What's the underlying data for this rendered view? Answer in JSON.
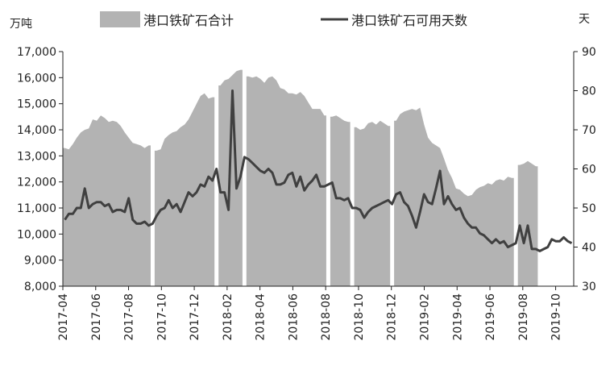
{
  "chart_data": {
    "type": "area+line",
    "left_unit": "万吨",
    "right_unit": "天",
    "left_ylim": [
      8000,
      17000
    ],
    "left_ticks": [
      "8,000",
      "9,000",
      "10,000",
      "11,000",
      "12,000",
      "13,000",
      "14,000",
      "15,000",
      "16,000",
      "17,000"
    ],
    "left_tick_values": [
      8000,
      9000,
      10000,
      11000,
      12000,
      13000,
      14000,
      15000,
      16000,
      17000
    ],
    "right_ylim": [
      30,
      90
    ],
    "right_ticks": [
      "30",
      "40",
      "50",
      "60",
      "70",
      "80",
      "90"
    ],
    "right_tick_values": [
      30,
      40,
      50,
      60,
      70,
      80,
      90
    ],
    "x_start": "2017-04",
    "x_end": "2019-11",
    "x_ticks": [
      "2017-04",
      "2017-06",
      "2017-08",
      "2017-10",
      "2017-12",
      "2018-02",
      "2018-04",
      "2018-06",
      "2018-08",
      "2018-10",
      "2018-12",
      "2019-02",
      "2019-04",
      "2019-06",
      "2019-08",
      "2019-10"
    ],
    "grid": false,
    "legend_position": "top",
    "colors": {
      "area": "#b3b3b3",
      "line": "#404040"
    },
    "series": [
      {
        "name": "港口铁矿石合计",
        "kind": "area",
        "axis": "left",
        "segments": [
          [
            [
              0,
              13300
            ],
            [
              1,
              13250
            ],
            [
              2,
              13450
            ],
            [
              3,
              13700
            ],
            [
              4,
              13900
            ],
            [
              5,
              14000
            ],
            [
              6,
              14050
            ],
            [
              7,
              14400
            ],
            [
              8,
              14350
            ],
            [
              9,
              14550
            ],
            [
              10,
              14450
            ],
            [
              11,
              14300
            ],
            [
              12,
              14350
            ],
            [
              13,
              14300
            ],
            [
              14,
              14150
            ],
            [
              15,
              13900
            ],
            [
              16,
              13700
            ],
            [
              17,
              13500
            ],
            [
              18,
              13450
            ],
            [
              19,
              13400
            ],
            [
              20,
              13300
            ],
            [
              21,
              13400
            ]
          ],
          [
            [
              23,
              13200
            ],
            [
              24,
              13250
            ],
            [
              25,
              13650
            ],
            [
              26,
              13800
            ],
            [
              27,
              13900
            ],
            [
              28,
              13950
            ],
            [
              29,
              14100
            ],
            [
              30,
              14200
            ],
            [
              31,
              14400
            ],
            [
              32,
              14700
            ],
            [
              33,
              15000
            ],
            [
              34,
              15300
            ],
            [
              35,
              15400
            ],
            [
              36,
              15200
            ],
            [
              37,
              15250
            ]
          ],
          [
            [
              39,
              15700
            ],
            [
              40,
              15900
            ],
            [
              41,
              15950
            ],
            [
              42,
              16100
            ],
            [
              43,
              16250
            ],
            [
              44,
              16300
            ]
          ],
          [
            [
              46,
              16050
            ],
            [
              47,
              16000
            ],
            [
              48,
              16050
            ],
            [
              49,
              15950
            ],
            [
              50,
              15800
            ],
            [
              51,
              16000
            ],
            [
              52,
              16050
            ],
            [
              53,
              15900
            ],
            [
              54,
              15600
            ],
            [
              55,
              15550
            ],
            [
              56,
              15400
            ],
            [
              57,
              15400
            ],
            [
              58,
              15350
            ],
            [
              59,
              15450
            ],
            [
              60,
              15300
            ],
            [
              61,
              15050
            ],
            [
              62,
              14800
            ],
            [
              63,
              14800
            ],
            [
              64,
              14800
            ],
            [
              65,
              14550
            ]
          ],
          [
            [
              67,
              14500
            ],
            [
              68,
              14550
            ],
            [
              69,
              14450
            ],
            [
              70,
              14350
            ],
            [
              71,
              14300
            ]
          ],
          [
            [
              73,
              14100
            ],
            [
              74,
              14000
            ],
            [
              75,
              14050
            ],
            [
              76,
              14250
            ],
            [
              77,
              14300
            ],
            [
              78,
              14200
            ],
            [
              79,
              14350
            ],
            [
              80,
              14250
            ],
            [
              81,
              14150
            ]
          ],
          [
            [
              83,
              14350
            ],
            [
              84,
              14600
            ],
            [
              85,
              14700
            ],
            [
              86,
              14750
            ],
            [
              87,
              14800
            ],
            [
              88,
              14750
            ],
            [
              89,
              14850
            ],
            [
              90,
              14200
            ],
            [
              91,
              13700
            ],
            [
              92,
              13500
            ],
            [
              93,
              13400
            ],
            [
              94,
              13300
            ],
            [
              95,
              12900
            ],
            [
              96,
              12450
            ],
            [
              97,
              12150
            ],
            [
              98,
              11750
            ],
            [
              99,
              11700
            ],
            [
              100,
              11550
            ],
            [
              101,
              11450
            ],
            [
              102,
              11500
            ],
            [
              103,
              11700
            ],
            [
              104,
              11800
            ],
            [
              105,
              11850
            ],
            [
              106,
              11950
            ],
            [
              107,
              11900
            ],
            [
              108,
              12050
            ],
            [
              109,
              12100
            ],
            [
              110,
              12050
            ],
            [
              111,
              12200
            ],
            [
              112,
              12150
            ]
          ],
          [
            [
              114,
              12650
            ],
            [
              115,
              12700
            ],
            [
              116,
              12800
            ],
            [
              117,
              12700
            ],
            [
              118,
              12600
            ]
          ]
        ]
      },
      {
        "name": "港口铁矿石可用天数",
        "kind": "line",
        "axis": "right",
        "points": [
          [
            0,
            47
          ],
          [
            1,
            48.5
          ],
          [
            2,
            48.5
          ],
          [
            3,
            50
          ],
          [
            4,
            50
          ],
          [
            5,
            55
          ],
          [
            6,
            50
          ],
          [
            7,
            51
          ],
          [
            8,
            51.5
          ],
          [
            9,
            51.5
          ],
          [
            10,
            50.5
          ],
          [
            11,
            51
          ],
          [
            12,
            49
          ],
          [
            13,
            49.5
          ],
          [
            14,
            49.5
          ],
          [
            15,
            49
          ],
          [
            16,
            52.5
          ],
          [
            17,
            47
          ],
          [
            18,
            46
          ],
          [
            19,
            46
          ],
          [
            20,
            46.5
          ],
          [
            21,
            45.5
          ],
          [
            22,
            46
          ],
          [
            23,
            48
          ],
          [
            24,
            49.5
          ],
          [
            25,
            50
          ],
          [
            26,
            52
          ],
          [
            27,
            50
          ],
          [
            28,
            51
          ],
          [
            29,
            49
          ],
          [
            30,
            51.5
          ],
          [
            31,
            54
          ],
          [
            32,
            53
          ],
          [
            33,
            54
          ],
          [
            34,
            56
          ],
          [
            35,
            55.5
          ],
          [
            36,
            58
          ],
          [
            37,
            57
          ],
          [
            38,
            60
          ],
          [
            39,
            54
          ],
          [
            40,
            54
          ],
          [
            41,
            49.5
          ],
          [
            42,
            80
          ],
          [
            43,
            55
          ],
          [
            44,
            58
          ],
          [
            45,
            63
          ],
          [
            46,
            62.5
          ],
          [
            47,
            61.5
          ],
          [
            48,
            60.5
          ],
          [
            49,
            59.5
          ],
          [
            50,
            59
          ],
          [
            51,
            60
          ],
          [
            52,
            59
          ],
          [
            53,
            56
          ],
          [
            54,
            56
          ],
          [
            55,
            56.5
          ],
          [
            56,
            58.5
          ],
          [
            57,
            59
          ],
          [
            58,
            55.5
          ],
          [
            59,
            58
          ],
          [
            60,
            54.5
          ],
          [
            61,
            56
          ],
          [
            62,
            57
          ],
          [
            63,
            58.5
          ],
          [
            64,
            55.5
          ],
          [
            65,
            55.5
          ],
          [
            66,
            56
          ],
          [
            67,
            56.5
          ],
          [
            68,
            52.5
          ],
          [
            69,
            52.5
          ],
          [
            70,
            52
          ],
          [
            71,
            52.5
          ],
          [
            72,
            50
          ],
          [
            73,
            50
          ],
          [
            74,
            49.5
          ],
          [
            75,
            47.5
          ],
          [
            76,
            49
          ],
          [
            77,
            50
          ],
          [
            78,
            50.5
          ],
          [
            79,
            51
          ],
          [
            80,
            51.5
          ],
          [
            81,
            52
          ],
          [
            82,
            51
          ],
          [
            83,
            53.5
          ],
          [
            84,
            54
          ],
          [
            85,
            51.5
          ],
          [
            86,
            50.5
          ],
          [
            87,
            48
          ],
          [
            88,
            45
          ],
          [
            89,
            49
          ],
          [
            90,
            53.5
          ],
          [
            91,
            51.5
          ],
          [
            92,
            51
          ],
          [
            93,
            55
          ],
          [
            94,
            59.5
          ],
          [
            95,
            51
          ],
          [
            96,
            53
          ],
          [
            97,
            51
          ],
          [
            98,
            49.5
          ],
          [
            99,
            50
          ],
          [
            100,
            47.5
          ],
          [
            101,
            46
          ],
          [
            102,
            45
          ],
          [
            103,
            45
          ],
          [
            104,
            43.5
          ],
          [
            105,
            43
          ],
          [
            106,
            42
          ],
          [
            107,
            41
          ],
          [
            108,
            42
          ],
          [
            109,
            41
          ],
          [
            110,
            41.5
          ],
          [
            111,
            40
          ],
          [
            112,
            40.5
          ],
          [
            113,
            41
          ],
          [
            114,
            45.5
          ],
          [
            115,
            41
          ],
          [
            116,
            45.5
          ],
          [
            117,
            39.5
          ],
          [
            118,
            39.5
          ],
          [
            119,
            39
          ],
          [
            120,
            39.5
          ],
          [
            121,
            40
          ],
          [
            122,
            42
          ],
          [
            123,
            41.5
          ],
          [
            124,
            41.5
          ],
          [
            125,
            42.5
          ],
          [
            126,
            41.5
          ],
          [
            127,
            41
          ]
        ]
      }
    ]
  }
}
